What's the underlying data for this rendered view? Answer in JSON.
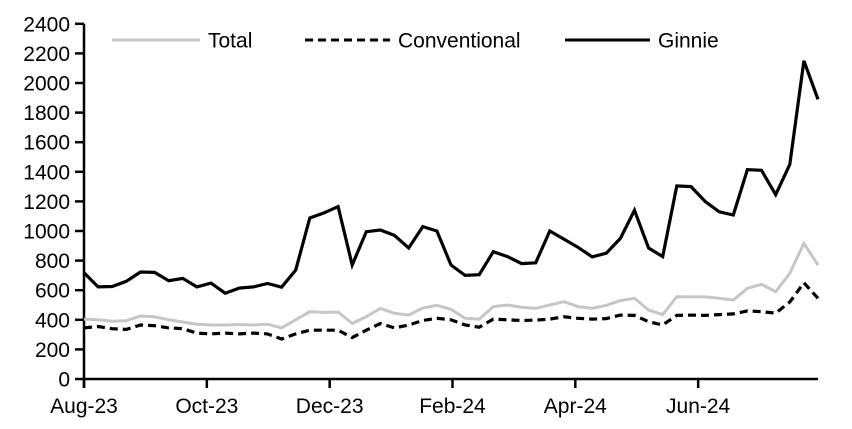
{
  "chart_data": {
    "type": "line",
    "title": "",
    "xlabel": "",
    "ylabel": "",
    "x_unit": "weekly observations, Aug-23 through Aug-24",
    "x_tick_labels": [
      "Aug-23",
      "Oct-23",
      "Dec-23",
      "Feb-24",
      "Apr-24",
      "Jun-24"
    ],
    "y_ticks": [
      0,
      200,
      400,
      600,
      800,
      1000,
      1200,
      1400,
      1600,
      1800,
      2000,
      2200,
      2400
    ],
    "ylim": [
      0,
      2400
    ],
    "grid": false,
    "legend_position": "top",
    "series": [
      {
        "name": "Total",
        "color": "#c6c6c6",
        "style": "solid",
        "values": [
          405,
          400,
          390,
          394,
          426,
          420,
          400,
          385,
          370,
          365,
          365,
          368,
          365,
          370,
          345,
          400,
          455,
          450,
          452,
          376,
          421,
          477,
          444,
          432,
          480,
          498,
          470,
          410,
          405,
          489,
          500,
          485,
          477,
          500,
          522,
          489,
          477,
          498,
          530,
          545,
          466,
          435,
          556,
          555,
          555,
          545,
          534,
          613,
          640,
          590,
          714,
          917,
          770
        ]
      },
      {
        "name": "Conventional",
        "color": "#000000",
        "style": "dashed",
        "values": [
          345,
          355,
          340,
          335,
          365,
          360,
          345,
          340,
          310,
          305,
          310,
          305,
          310,
          305,
          270,
          305,
          330,
          330,
          330,
          280,
          330,
          375,
          345,
          365,
          395,
          410,
          400,
          365,
          350,
          405,
          400,
          395,
          398,
          405,
          420,
          410,
          405,
          408,
          432,
          430,
          387,
          365,
          430,
          432,
          430,
          435,
          440,
          460,
          455,
          445,
          520,
          650,
          545
        ]
      },
      {
        "name": "Ginnie",
        "color": "#000000",
        "style": "solid",
        "values": [
          718,
          622,
          625,
          660,
          723,
          720,
          664,
          680,
          622,
          648,
          580,
          614,
          622,
          645,
          620,
          736,
          1088,
          1122,
          1165,
          770,
          995,
          1007,
          970,
          885,
          1030,
          1000,
          770,
          700,
          705,
          860,
          827,
          780,
          785,
          1000,
          945,
          890,
          825,
          850,
          950,
          1140,
          885,
          827,
          1305,
          1300,
          1200,
          1130,
          1108,
          1415,
          1410,
          1245,
          1450,
          2150,
          1890
        ]
      }
    ],
    "axis_color": "#000000",
    "background_color": "#ffffff"
  }
}
